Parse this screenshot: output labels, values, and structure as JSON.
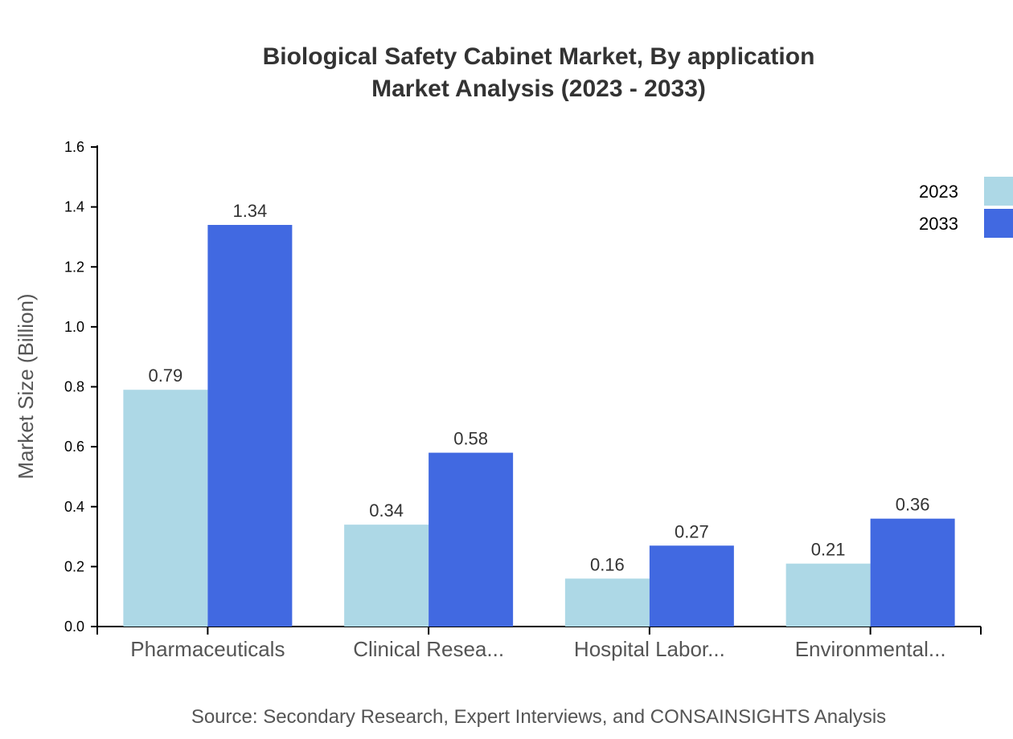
{
  "chart_data": {
    "type": "bar",
    "title": "Biological Safety Cabinet Market, By application",
    "subtitle": "Market Analysis (2023 - 2033)",
    "ylabel": "Market Size (Billion)",
    "xlabel": "",
    "ylim": [
      0,
      1.6
    ],
    "yticks": [
      "0.0",
      "0.2",
      "0.4",
      "0.6",
      "0.8",
      "1.0",
      "1.2",
      "1.4",
      "1.6"
    ],
    "categories": [
      "Pharmaceuticals",
      "Clinical Resea...",
      "Hospital Labor...",
      "Environmental..."
    ],
    "series": [
      {
        "name": "2023",
        "color": "#add8e6",
        "values": [
          0.79,
          0.34,
          0.16,
          0.21
        ]
      },
      {
        "name": "2033",
        "color": "#4169e1",
        "values": [
          1.34,
          0.58,
          0.27,
          0.36
        ]
      }
    ],
    "legend": "top-right",
    "grid": false,
    "source": "Source: Secondary Research, Expert Interviews, and CONSAINSIGHTS Analysis"
  }
}
